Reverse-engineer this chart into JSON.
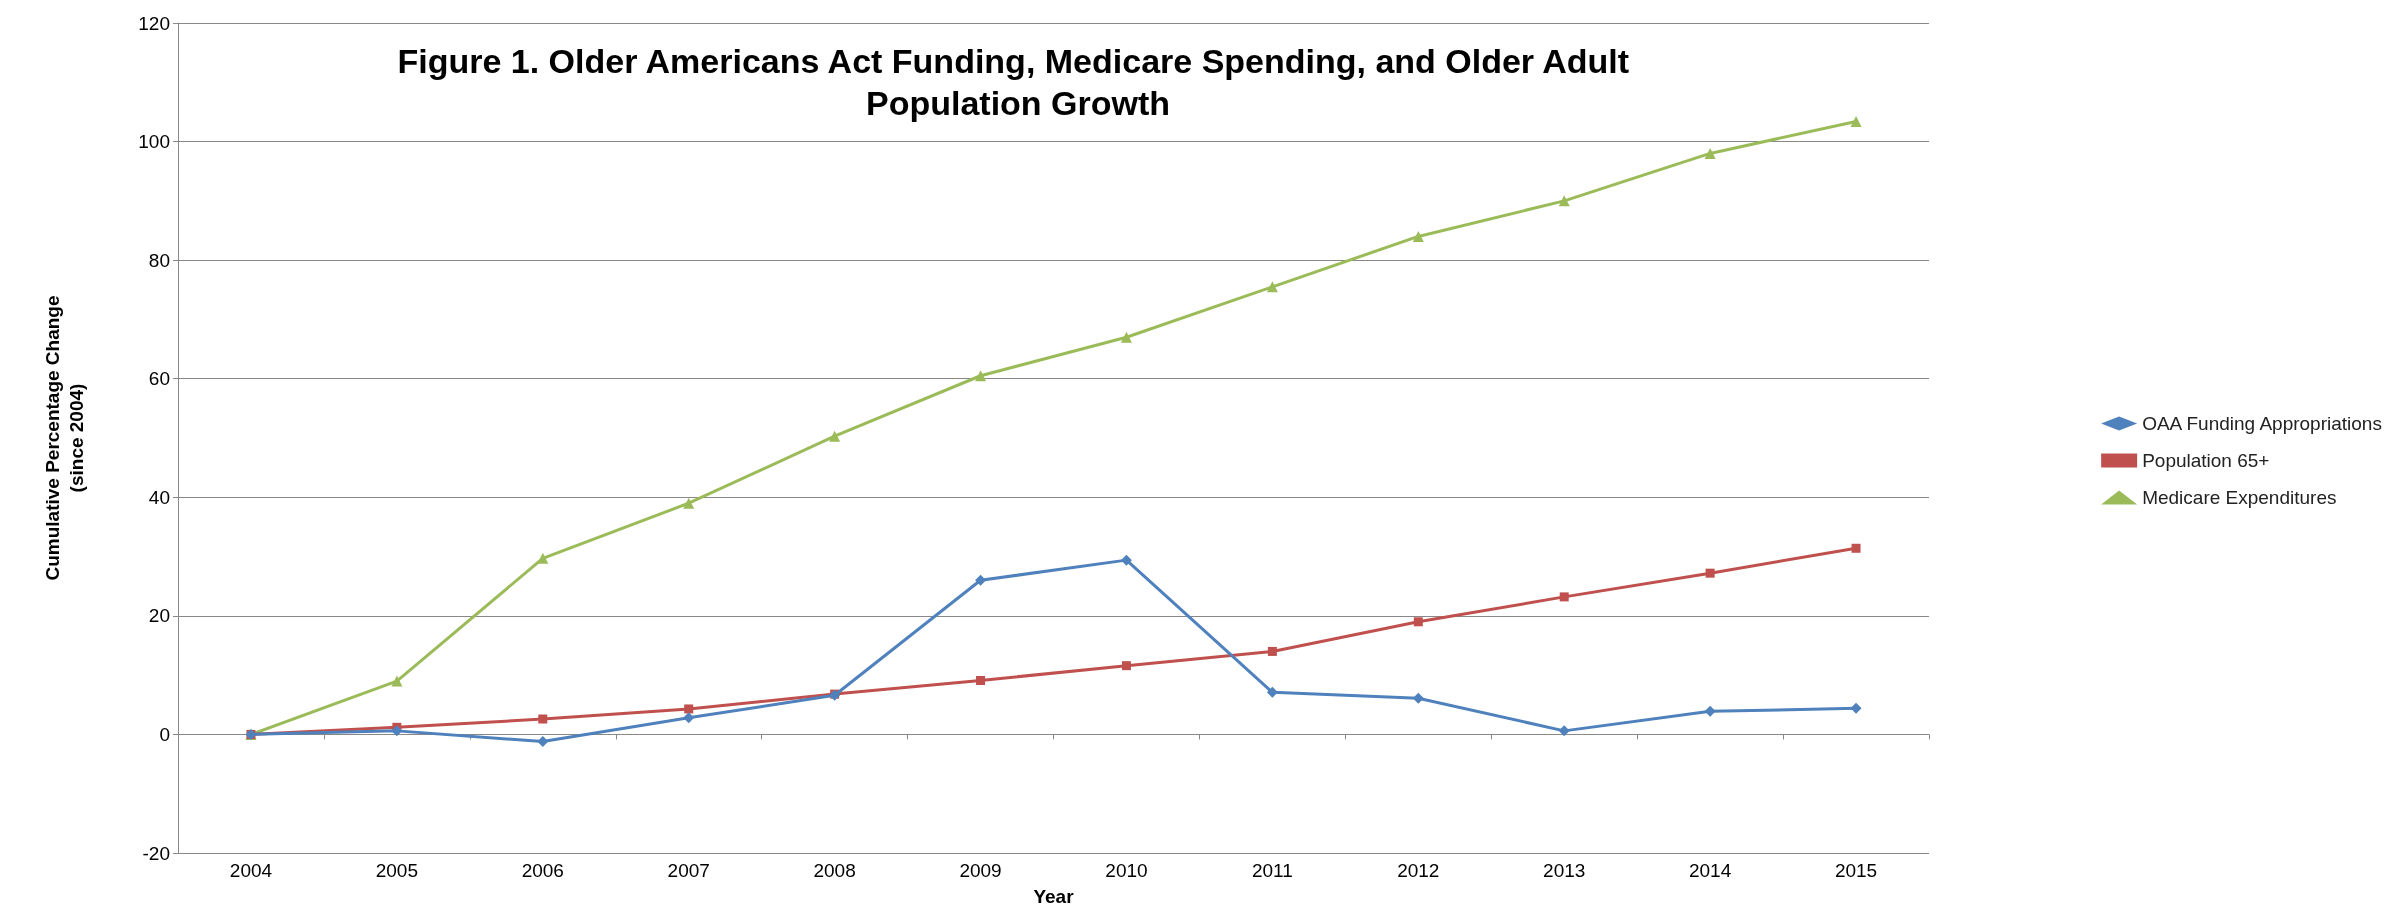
{
  "chart_data": {
    "type": "line",
    "title": "Figure 1. Older Americans Act Funding, Medicare Spending, and Older Adult Population Growth",
    "xlabel": "Year",
    "ylabel": "Cumulative Percentage Change\n(since 2004)",
    "categories": [
      "2004",
      "2005",
      "2006",
      "2007",
      "2008",
      "2009",
      "2010",
      "2011",
      "2012",
      "2013",
      "2014",
      "2015"
    ],
    "series": [
      {
        "name": "OAA Funding Appropriations",
        "color": "#4f81bd",
        "marker": "diamond",
        "values": [
          0,
          0.6,
          -1.2,
          2.8,
          6.6,
          26,
          29.4,
          7.1,
          6.1,
          0.6,
          3.9,
          4.4
        ]
      },
      {
        "name": "Population 65+",
        "color": "#c0504d",
        "marker": "square",
        "values": [
          0,
          1.2,
          2.6,
          4.3,
          6.8,
          9.1,
          11.6,
          14,
          19,
          23.2,
          27.2,
          31.4
        ]
      },
      {
        "name": "Medicare Expenditures",
        "color": "#9bbb59",
        "marker": "triangle",
        "values": [
          0,
          9,
          29.7,
          39,
          50.3,
          60.5,
          67,
          75.5,
          84,
          90,
          98,
          103.4
        ]
      }
    ],
    "ylim": [
      -20,
      120
    ],
    "yticks": [
      -20,
      0,
      20,
      40,
      60,
      80,
      100,
      120
    ],
    "grid": "y",
    "legend": "right",
    "line_style": "solid"
  }
}
